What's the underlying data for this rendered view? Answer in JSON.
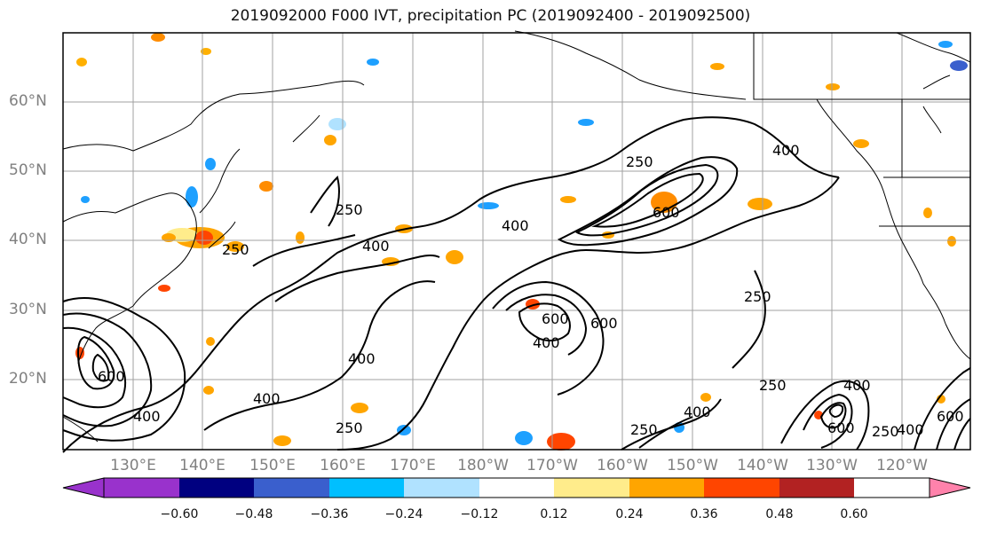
{
  "title": "2019092000 F000 IVT, precipitation PC (2019092400 - 2019092500)",
  "map": {
    "lat_labels": [
      "60°N",
      "50°N",
      "40°N",
      "30°N",
      "20°N"
    ],
    "lon_labels": [
      "130°E",
      "140°E",
      "150°E",
      "160°E",
      "170°E",
      "180°W",
      "170°W",
      "160°W",
      "150°W",
      "140°W",
      "130°W",
      "120°W"
    ],
    "contour_labels": [
      "250",
      "400",
      "400",
      "250",
      "400",
      "250",
      "400",
      "400",
      "600",
      "250",
      "600",
      "400",
      "600",
      "250",
      "400",
      "250",
      "400",
      "250",
      "600",
      "250",
      "400",
      "600",
      "400",
      "600"
    ],
    "contour_levels": [
      250,
      400,
      600
    ],
    "line_color": "#000000",
    "grid_color": "#999999"
  },
  "colorbar": {
    "ticks": [
      "−0.60",
      "−0.48",
      "−0.36",
      "−0.24",
      "−0.12",
      "0.12",
      "0.24",
      "0.36",
      "0.48",
      "0.60"
    ],
    "colors": [
      "#9932cc",
      "#000080",
      "#3a5fcd",
      "#00bfff",
      "#b0e2ff",
      "#ffffff",
      "#ffec8b",
      "#ffa500",
      "#ff4500",
      "#b22222",
      "#ff82ab"
    ]
  }
}
